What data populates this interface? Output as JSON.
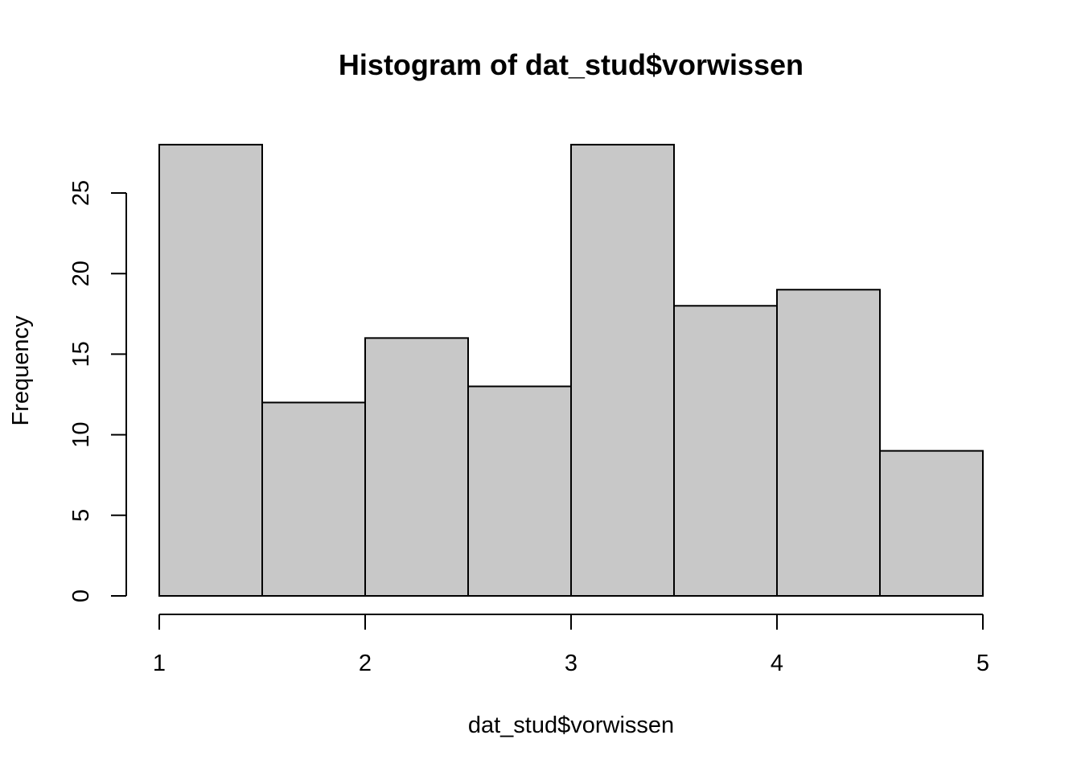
{
  "chart_data": {
    "type": "bar",
    "title": "Histogram of dat_stud$vorwissen",
    "xlabel": "dat_stud$vorwissen",
    "ylabel": "Frequency",
    "bins": [
      {
        "start": 1.0,
        "end": 1.5,
        "count": 28
      },
      {
        "start": 1.5,
        "end": 2.0,
        "count": 12
      },
      {
        "start": 2.0,
        "end": 2.5,
        "count": 16
      },
      {
        "start": 2.5,
        "end": 3.0,
        "count": 13
      },
      {
        "start": 3.0,
        "end": 3.5,
        "count": 28
      },
      {
        "start": 3.5,
        "end": 4.0,
        "count": 18
      },
      {
        "start": 4.0,
        "end": 4.5,
        "count": 19
      },
      {
        "start": 4.5,
        "end": 5.0,
        "count": 9
      }
    ],
    "xlim": [
      1,
      5
    ],
    "ylim": [
      0,
      28
    ],
    "xticks": [
      "1",
      "2",
      "3",
      "4",
      "5"
    ],
    "yticks": [
      "0",
      "5",
      "10",
      "15",
      "20",
      "25"
    ],
    "grid": false,
    "colors": {
      "bar_fill": "#c8c8c8",
      "bar_stroke": "#000000"
    }
  }
}
